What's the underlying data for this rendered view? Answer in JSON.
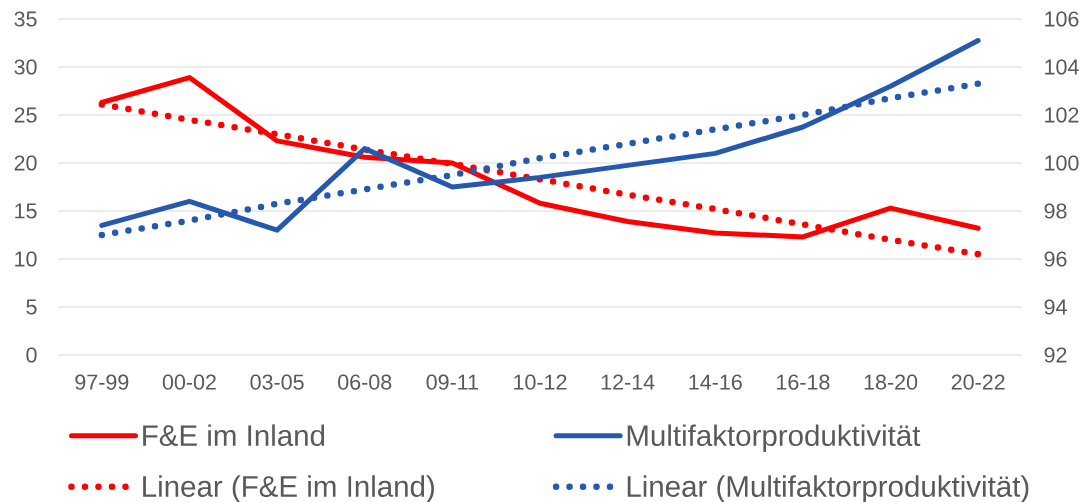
{
  "chart_data": {
    "type": "line",
    "categories": [
      "97-99",
      "00-02",
      "03-05",
      "06-08",
      "09-11",
      "10-12",
      "12-14",
      "14-16",
      "16-18",
      "18-20",
      "20-22"
    ],
    "series": [
      {
        "name": "F&E im Inland",
        "color": "#ff0000",
        "values": [
          26.3,
          28.9,
          22.3,
          20.6,
          20.0,
          15.8,
          13.9,
          12.7,
          12.3,
          15.3,
          13.2
        ]
      },
      {
        "name": "Multifaktorproduktivität",
        "color": "#2459ae",
        "axis": "y2",
        "values": [
          97.4,
          98.4,
          97.2,
          100.6,
          99.0,
          99.4,
          99.9,
          100.4,
          101.5,
          103.2,
          105.1
        ]
      },
      {
        "name": "Linear (F&E im Inland)",
        "color": "#ff0000",
        "values": [
          26.1,
          24.5,
          23.0,
          21.4,
          19.9,
          18.3,
          16.7,
          15.2,
          13.6,
          12.0,
          10.5
        ],
        "line_style": "dotted"
      },
      {
        "name": "Linear (Multifaktorproduktivität)",
        "color": "#2459ae",
        "axis": "y2",
        "values": [
          97.0,
          97.6,
          98.3,
          98.9,
          99.5,
          100.2,
          100.8,
          101.4,
          102.0,
          102.7,
          103.3
        ],
        "line_style": "dotted"
      }
    ],
    "ylim": [
      0,
      35
    ],
    "yticks": [
      0,
      5,
      10,
      15,
      20,
      25,
      30,
      35
    ],
    "y2lim": [
      92,
      106
    ],
    "y2ticks": [
      92,
      94,
      96,
      98,
      100,
      102,
      104,
      106
    ],
    "grid": "y",
    "legend": "bottom",
    "marker": "none",
    "line_style": "solid"
  }
}
